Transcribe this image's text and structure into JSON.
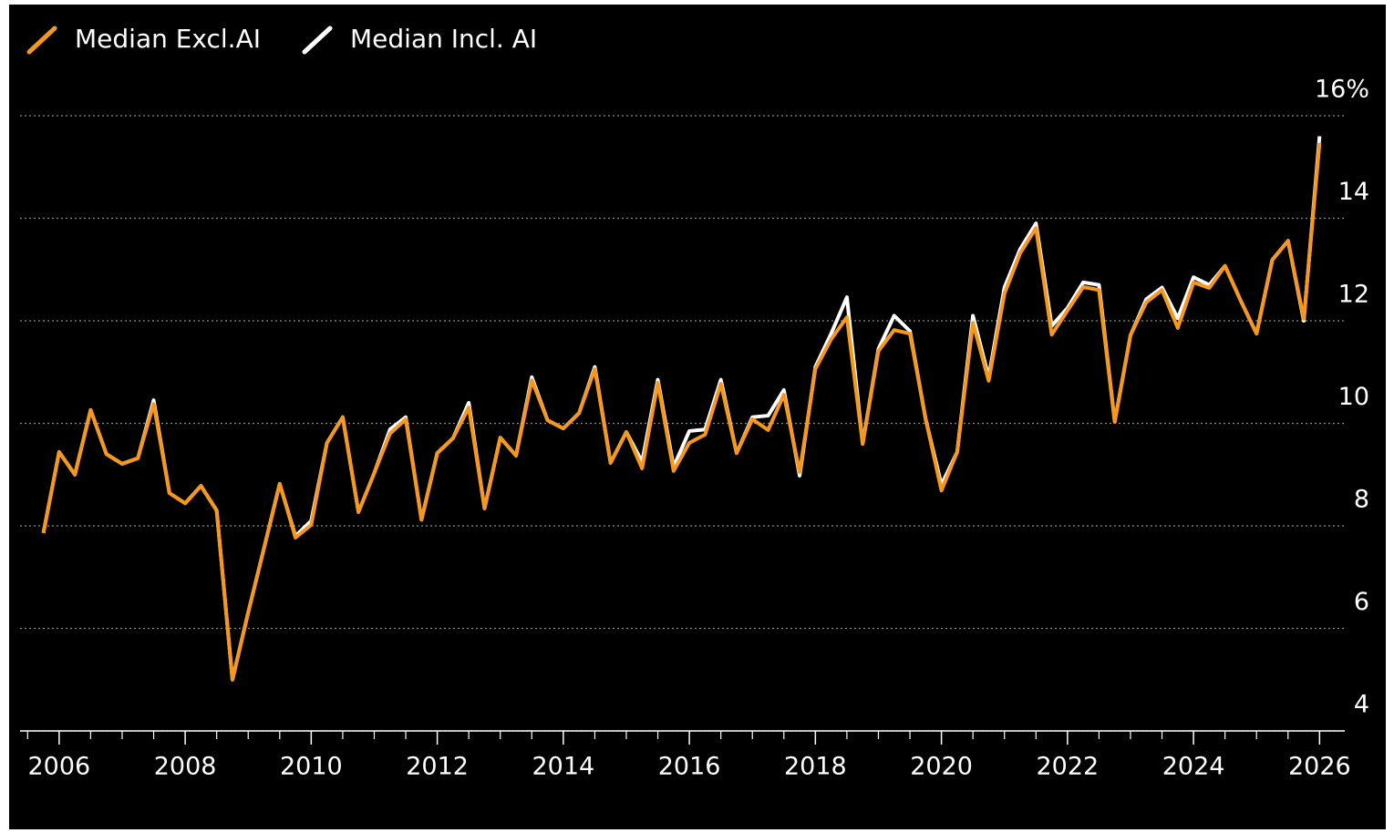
{
  "chart_data": {
    "type": "line",
    "x": [
      2005.75,
      2006,
      2006.25,
      2006.5,
      2006.75,
      2007,
      2007.25,
      2007.5,
      2007.75,
      2008,
      2008.25,
      2008.5,
      2008.75,
      2009,
      2009.25,
      2009.5,
      2009.75,
      2010,
      2010.25,
      2010.5,
      2010.75,
      2011,
      2011.25,
      2011.5,
      2011.75,
      2012,
      2012.25,
      2012.5,
      2012.75,
      2013,
      2013.25,
      2013.5,
      2013.75,
      2014,
      2014.25,
      2014.5,
      2014.75,
      2015,
      2015.25,
      2015.5,
      2015.75,
      2016,
      2016.25,
      2016.5,
      2016.75,
      2017,
      2017.25,
      2017.5,
      2017.75,
      2018,
      2018.25,
      2018.5,
      2018.75,
      2019,
      2019.25,
      2019.5,
      2019.75,
      2020,
      2020.25,
      2020.5,
      2020.75,
      2021,
      2021.25,
      2021.5,
      2021.75,
      2022,
      2022.25,
      2022.5,
      2022.75,
      2023,
      2023.25,
      2023.5,
      2023.75,
      2024,
      2024.25,
      2024.5,
      2024.75,
      2025,
      2025.25,
      2025.5,
      2025.75,
      2026
    ],
    "series": [
      {
        "name": "Median Incl. AI",
        "color": "#ffffff",
        "values": [
          7.86,
          9.44,
          9.0,
          10.26,
          9.4,
          9.21,
          9.32,
          10.45,
          8.64,
          8.44,
          8.78,
          8.3,
          5.0,
          6.31,
          7.56,
          8.82,
          7.8,
          8.1,
          9.62,
          10.12,
          8.27,
          9.03,
          9.88,
          10.12,
          8.12,
          9.42,
          9.71,
          10.4,
          8.34,
          9.72,
          9.37,
          10.9,
          10.06,
          9.9,
          10.2,
          11.1,
          9.23,
          9.83,
          9.25,
          10.85,
          9.15,
          9.85,
          9.88,
          10.85,
          9.42,
          10.12,
          10.15,
          10.65,
          8.98,
          11.1,
          11.75,
          12.46,
          9.6,
          11.45,
          12.1,
          11.8,
          10.08,
          8.8,
          9.44,
          12.1,
          10.9,
          12.65,
          13.4,
          13.9,
          11.9,
          12.25,
          12.75,
          12.7,
          10.03,
          11.72,
          12.42,
          12.65,
          12.05,
          12.85,
          12.7,
          13.07,
          12.39,
          11.75,
          13.19,
          13.56,
          12.0,
          15.6
        ]
      },
      {
        "name": "Median Excl.AI",
        "color": "#f7981d",
        "values": [
          7.86,
          9.44,
          9.0,
          10.26,
          9.4,
          9.21,
          9.32,
          10.38,
          8.64,
          8.44,
          8.78,
          8.3,
          5.0,
          6.31,
          7.56,
          8.82,
          7.77,
          8.02,
          9.62,
          10.12,
          8.27,
          9.03,
          9.8,
          10.08,
          8.12,
          9.42,
          9.71,
          10.31,
          8.34,
          9.72,
          9.37,
          10.84,
          10.06,
          9.9,
          10.2,
          11.06,
          9.23,
          9.83,
          9.12,
          10.79,
          9.07,
          9.62,
          9.78,
          10.77,
          9.42,
          10.08,
          9.87,
          10.56,
          9.05,
          11.06,
          11.64,
          12.07,
          9.6,
          11.41,
          11.82,
          11.75,
          10.08,
          8.69,
          9.44,
          11.96,
          10.83,
          12.53,
          13.32,
          13.81,
          11.73,
          12.2,
          12.66,
          12.6,
          10.03,
          11.72,
          12.36,
          12.6,
          11.86,
          12.75,
          12.64,
          13.07,
          12.39,
          11.75,
          13.19,
          13.56,
          12.04,
          15.47
        ]
      }
    ],
    "xlim": [
      2005.38,
      2026.4
    ],
    "xticks": [
      2006,
      2008,
      2010,
      2012,
      2014,
      2016,
      2018,
      2020,
      2022,
      2024,
      2026
    ],
    "xminorticks": [
      2005.5,
      2006.5,
      2007,
      2007.5,
      2008.5,
      2009,
      2009.5,
      2010.5,
      2011,
      2011.5,
      2012.5,
      2013,
      2013.5,
      2014.5,
      2015,
      2015.5,
      2016.5,
      2017,
      2017.5,
      2018.5,
      2019,
      2019.5,
      2020.5,
      2021,
      2021.5,
      2022.5,
      2023,
      2023.5,
      2024.5,
      2025,
      2025.5
    ],
    "ylim": [
      4,
      16.8
    ],
    "yticks": [
      4,
      6,
      8,
      10,
      12,
      {
        "value": 16,
        "label": "16%"
      },
      14
    ],
    "grid": true,
    "legend": "top-left"
  }
}
